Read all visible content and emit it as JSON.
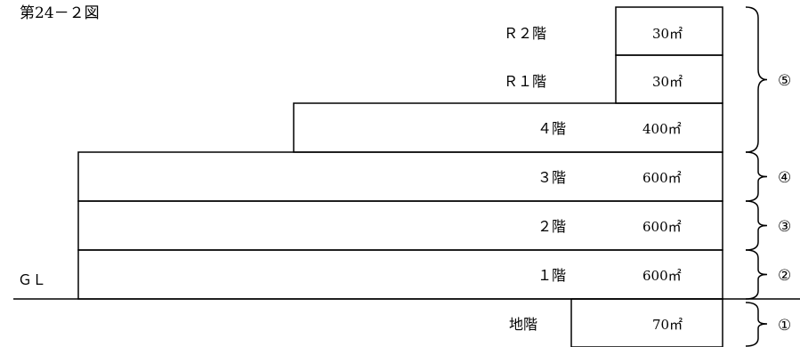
{
  "figure": {
    "title": "第24－２図",
    "ground_label": "ＧＬ"
  },
  "floors": [
    {
      "label": "Ｒ２階",
      "area": "30",
      "unit": "㎡"
    },
    {
      "label": "Ｒ１階",
      "area": "30",
      "unit": "㎡"
    },
    {
      "label": "４階",
      "area": "400",
      "unit": "㎡"
    },
    {
      "label": "３階",
      "area": "600",
      "unit": "㎡"
    },
    {
      "label": "２階",
      "area": "600",
      "unit": "㎡"
    },
    {
      "label": "１階",
      "area": "600",
      "unit": "㎡"
    },
    {
      "label": "地階",
      "area": "70",
      "unit": "㎡"
    }
  ],
  "groups": [
    "①",
    "②",
    "③",
    "④",
    "⑤"
  ]
}
